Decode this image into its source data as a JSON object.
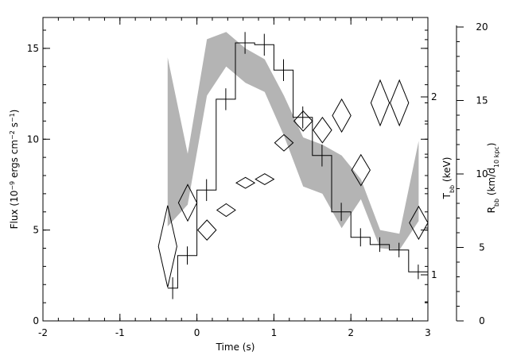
{
  "chart_data": {
    "type": "line",
    "title": "",
    "xlabel": "Time (s)",
    "ylabel": "Flux (10<sup>−9</sup> ergs cm<sup>−2</sup> s<sup>−1</sup>)",
    "ylabel_right_inner": "T<sub>bb</sub> (keV)",
    "ylabel_right_outer": "R<sub>bb</sub> (km/d<sub>10 kpc</sub>)",
    "xlim": [
      -2,
      3
    ],
    "ylim": [
      0,
      16.7
    ],
    "x_ticks": [
      -2,
      -1,
      0,
      1,
      2,
      3
    ],
    "y_ticks": [
      0,
      5,
      10,
      15
    ],
    "t_axis": {
      "labeled_ticks": [
        1,
        2
      ],
      "minor_ticks": [
        0.5,
        0.6,
        0.7,
        0.8,
        0.9,
        1.2,
        1.4,
        1.6,
        1.8,
        2.5,
        3.0
      ]
    },
    "r_axis": {
      "lim": [
        0,
        20.5
      ],
      "ticks": [
        0,
        5,
        10,
        15,
        20
      ]
    },
    "grid": false,
    "series": [
      {
        "style": "histogram-with-errors",
        "axis": "flux",
        "bins": [
          {
            "x0": -0.38,
            "x1": -0.25,
            "y": 1.8,
            "err": 0.6
          },
          {
            "x0": -0.25,
            "x1": 0.0,
            "y": 3.6,
            "err": 0.5
          },
          {
            "x0": 0.0,
            "x1": 0.25,
            "y": 7.2,
            "err": 0.6
          },
          {
            "x0": 0.25,
            "x1": 0.5,
            "y": 12.2,
            "err": 0.6
          },
          {
            "x0": 0.5,
            "x1": 0.75,
            "y": 15.3,
            "err": 0.6
          },
          {
            "x0": 0.75,
            "x1": 1.0,
            "y": 15.2,
            "err": 0.6
          },
          {
            "x0": 1.0,
            "x1": 1.25,
            "y": 13.8,
            "err": 0.6
          },
          {
            "x0": 1.25,
            "x1": 1.5,
            "y": 11.2,
            "err": 0.6
          },
          {
            "x0": 1.5,
            "x1": 1.75,
            "y": 9.1,
            "err": 0.6
          },
          {
            "x0": 1.75,
            "x1": 2.0,
            "y": 6.0,
            "err": 0.5
          },
          {
            "x0": 2.0,
            "x1": 2.25,
            "y": 4.6,
            "err": 0.5
          },
          {
            "x0": 2.25,
            "x1": 2.5,
            "y": 4.2,
            "err": 0.4
          },
          {
            "x0": 2.5,
            "x1": 2.75,
            "y": 3.9,
            "err": 0.4
          },
          {
            "x0": 2.75,
            "x1": 3.0,
            "y": 2.7,
            "err": 0.4
          }
        ]
      },
      {
        "style": "diamonds",
        "axis": "flux-scale",
        "points": [
          {
            "x": -0.38,
            "y": 4.1,
            "dy": 2.25,
            "dx": 0.12
          },
          {
            "x": -0.12,
            "y": 6.5,
            "dy": 1.0,
            "dx": 0.12
          },
          {
            "x": 0.13,
            "y": 5.0,
            "dy": 0.55,
            "dx": 0.12
          },
          {
            "x": 0.38,
            "y": 6.1,
            "dy": 0.35,
            "dx": 0.12
          },
          {
            "x": 0.63,
            "y": 7.6,
            "dy": 0.3,
            "dx": 0.12
          },
          {
            "x": 0.88,
            "y": 7.8,
            "dy": 0.3,
            "dx": 0.12
          },
          {
            "x": 1.13,
            "y": 9.8,
            "dy": 0.45,
            "dx": 0.12
          },
          {
            "x": 1.38,
            "y": 11.0,
            "dy": 0.55,
            "dx": 0.12
          },
          {
            "x": 1.63,
            "y": 10.5,
            "dy": 0.7,
            "dx": 0.12
          },
          {
            "x": 1.88,
            "y": 11.3,
            "dy": 0.9,
            "dx": 0.12
          },
          {
            "x": 2.13,
            "y": 8.3,
            "dy": 0.85,
            "dx": 0.12
          },
          {
            "x": 2.38,
            "y": 12.0,
            "dy": 1.25,
            "dx": 0.12
          },
          {
            "x": 2.63,
            "y": 12.0,
            "dy": 1.25,
            "dx": 0.12
          },
          {
            "x": 2.88,
            "y": 5.4,
            "dy": 0.9,
            "dx": 0.12
          }
        ]
      },
      {
        "style": "band",
        "axis": "flux-scale",
        "color": "#b4b4b4",
        "x": [
          -0.38,
          -0.12,
          0.13,
          0.38,
          0.63,
          0.88,
          1.13,
          1.38,
          1.63,
          1.88,
          2.13,
          2.38,
          2.63,
          2.88
        ],
        "lower": [
          5.2,
          6.4,
          12.4,
          14.0,
          13.1,
          12.6,
          10.2,
          7.4,
          7.0,
          5.1,
          6.7,
          4.0,
          3.9,
          5.5
        ],
        "upper": [
          14.5,
          9.2,
          15.5,
          15.9,
          15.0,
          14.4,
          12.4,
          10.1,
          9.7,
          9.1,
          7.8,
          5.0,
          4.8,
          9.9
        ]
      }
    ],
    "tick_label_style": {
      "font_color": "#000000"
    }
  }
}
